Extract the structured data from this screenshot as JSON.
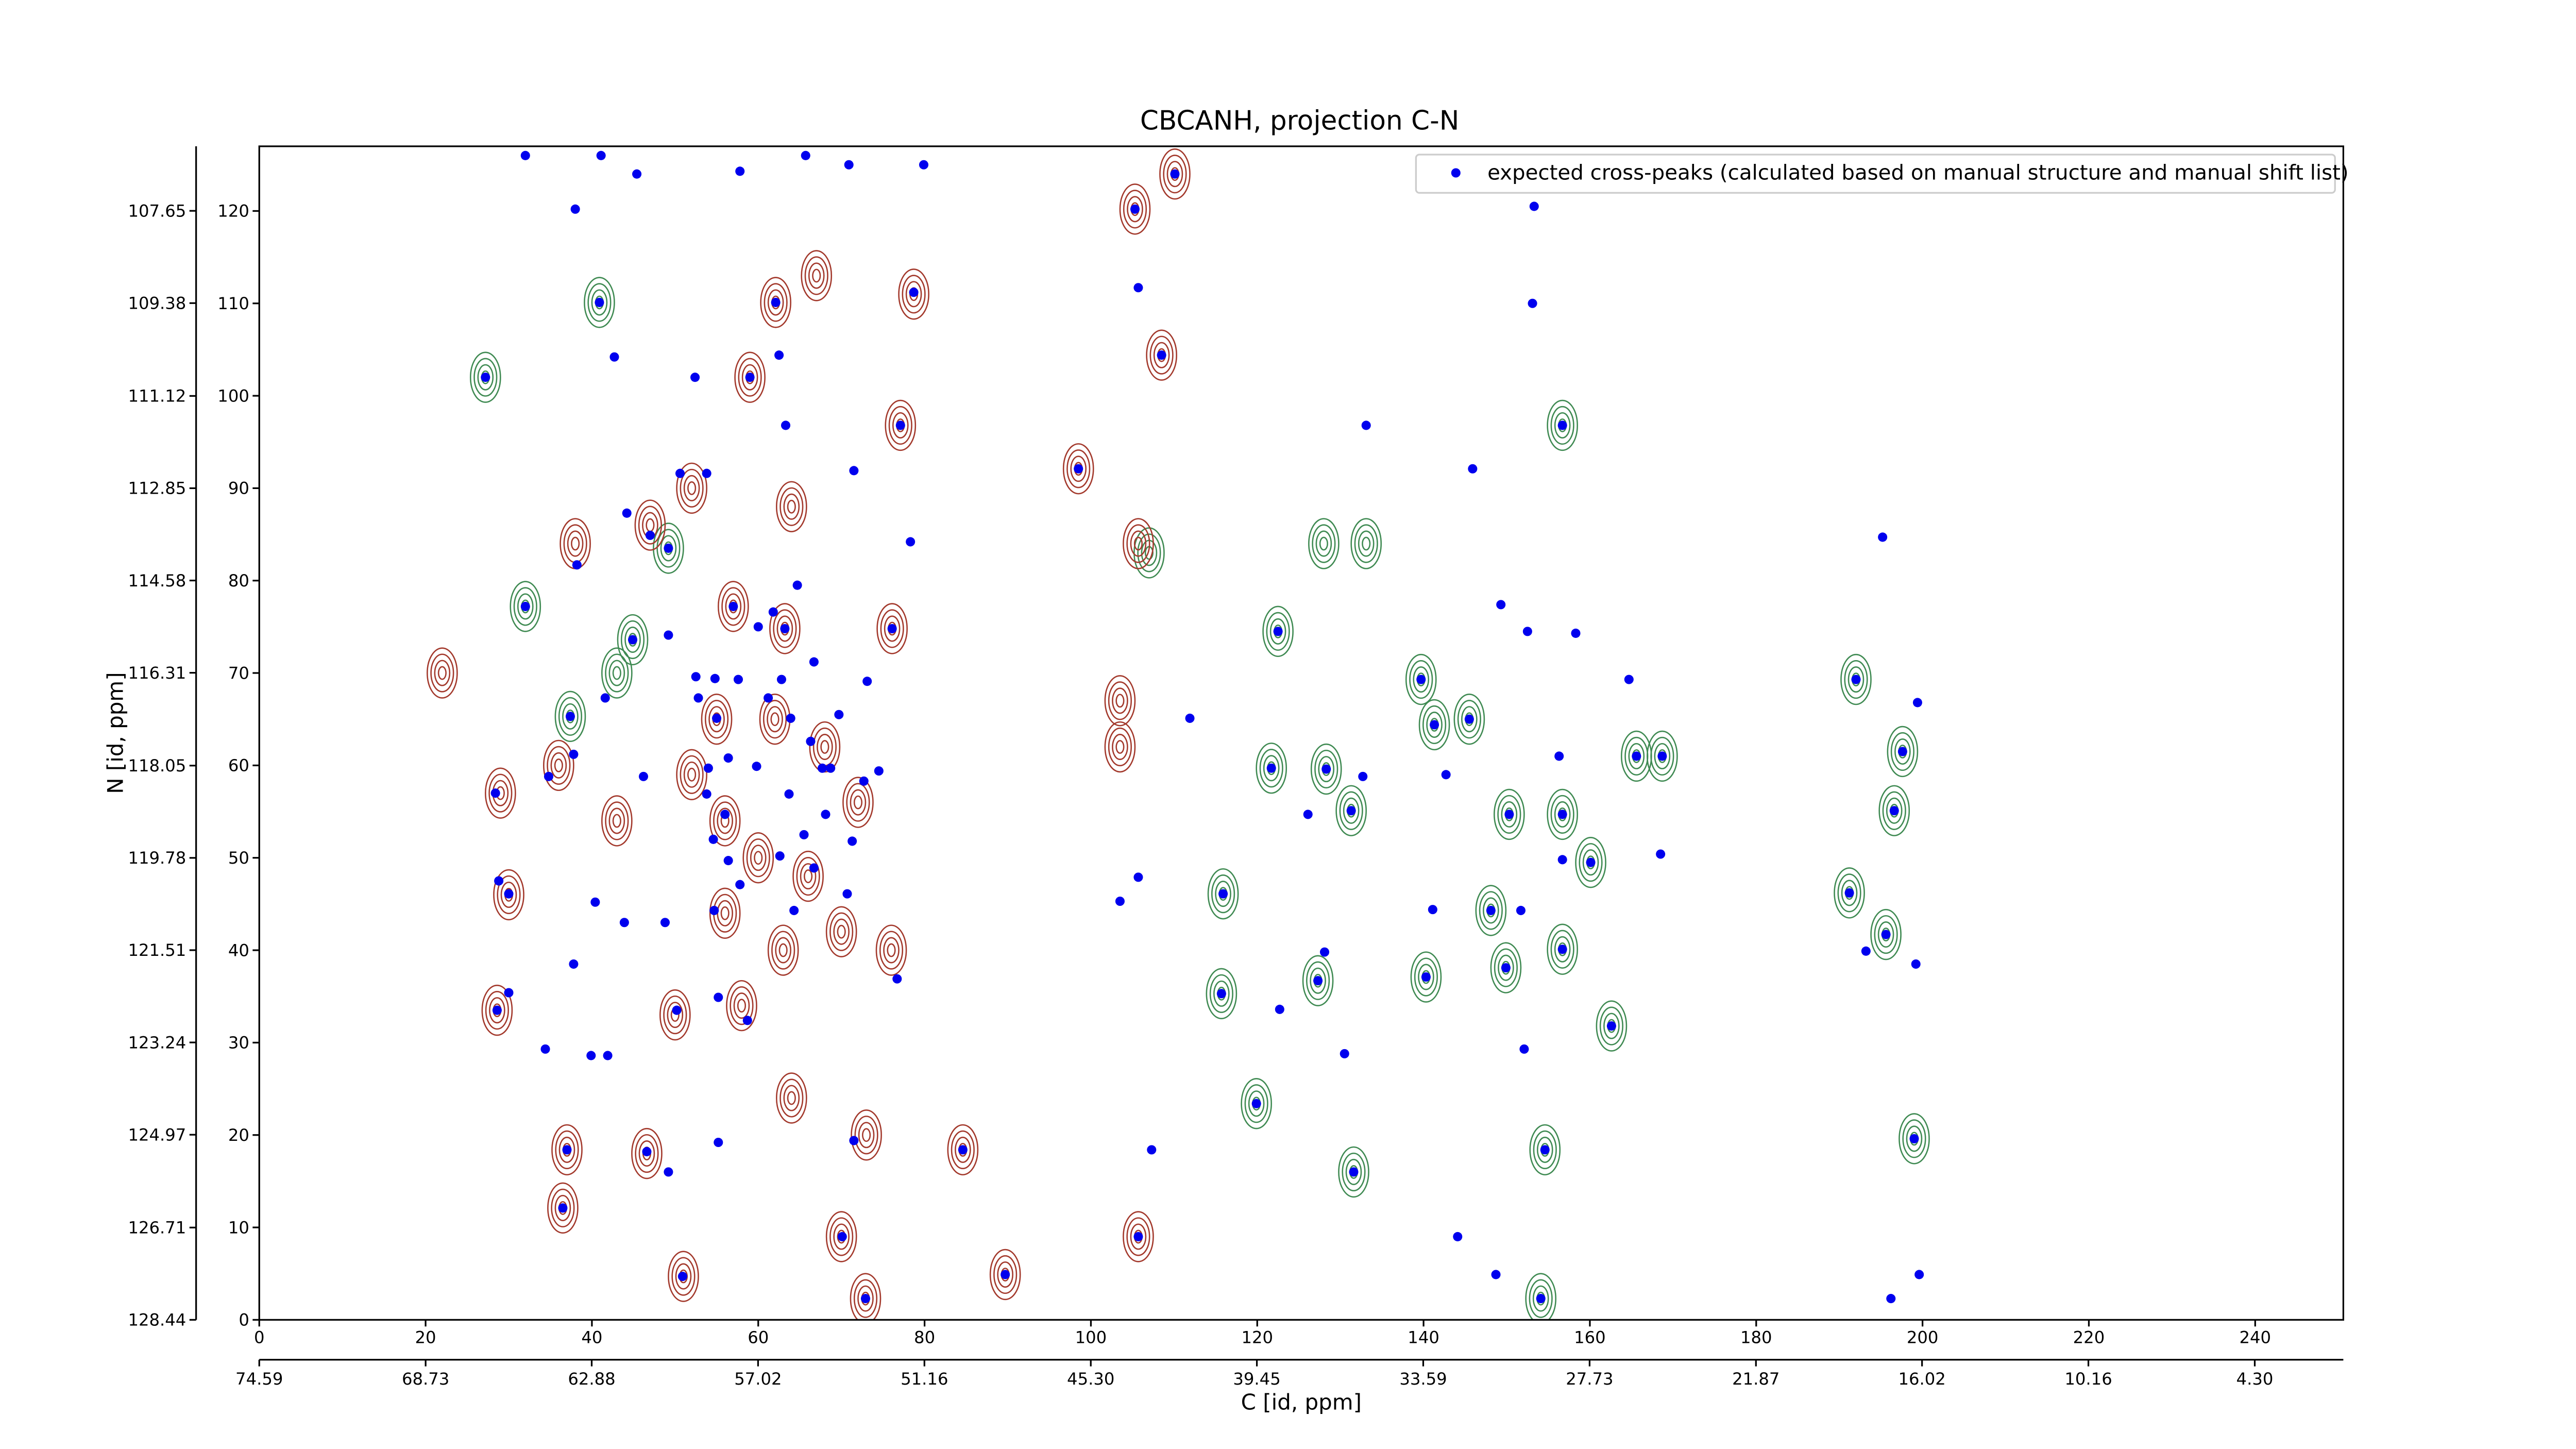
{
  "chart_data": {
    "type": "scatter",
    "title": "CBCANH, projection C-N",
    "x_label": "C [id, ppm]",
    "y_label": "N [id, ppm]",
    "legend": "upper right",
    "xlim": [
      0,
      250.6
    ],
    "ylim": [
      0,
      127
    ],
    "xticks": [
      0,
      20,
      40,
      60,
      80,
      100,
      120,
      140,
      160,
      180,
      200,
      220,
      240
    ],
    "yticks": [
      0,
      10,
      20,
      30,
      40,
      50,
      60,
      70,
      80,
      90,
      100,
      110,
      120
    ],
    "x2lim": [
      74.59,
      1.18
    ],
    "x2ticks": [
      74.59,
      68.73,
      62.88,
      57.02,
      51.16,
      {
        "value": 45.3,
        "label": "45.30"
      },
      39.45,
      33.59,
      27.73,
      21.87,
      16.02,
      10.16,
      {
        "value": 4.3,
        "label": "4.30"
      }
    ],
    "y2lim": [
      128.44,
      106.44
    ],
    "y2ticks": [
      107.65,
      109.38,
      111.12,
      112.85,
      114.58,
      116.31,
      118.05,
      119.78,
      121.51,
      123.24,
      124.97,
      126.71,
      128.44
    ],
    "series": [
      {
        "name": "expected cross-peaks (calculated based on manual structure and manual shift list)",
        "color": "#0000ee",
        "x": [
          32,
          41.1,
          45.4,
          57.8,
          65.7,
          70.9,
          79.9,
          110.1,
          105.3,
          38,
          153.3,
          105.7,
          40.9,
          62.1,
          78.7,
          153.1,
          108.5,
          42.7,
          27.2,
          52.4,
          59,
          62.5,
          63.3,
          77.1,
          133.1,
          156.7,
          98.5,
          145.9,
          53.8,
          50.6,
          71.5,
          44.2,
          47,
          49.2,
          38.2,
          78.3,
          195.2,
          32,
          57,
          60,
          63.2,
          76.1,
          49.2,
          44.9,
          149.3,
          152.5,
          158.3,
          122.5,
          192,
          199.4,
          139.7,
          164.7,
          52.5,
          57.6,
          62.8,
          37.4,
          41.6,
          111.9,
          141.3,
          145.5,
          197.6,
          165.6,
          168.7,
          156.3,
          121.7,
          128.3,
          132.7,
          142.7,
          37.8,
          46.2,
          34.8,
          28.4,
          59.8,
          68.7,
          74.5,
          196.6,
          126.1,
          150.3,
          156.7,
          131.3,
          168.5,
          156.7,
          160.1,
          191.2,
          103.5,
          105.7,
          115.9,
          141.1,
          148.1,
          151.7,
          28.8,
          30,
          40.4,
          43.9,
          48.8,
          54.7,
          64.3,
          70.7,
          193.2,
          195.6,
          128.1,
          140.3,
          149.9,
          156.7,
          115.7,
          122.7,
          127.3,
          30,
          37.8,
          50.2,
          55.2,
          58.7,
          76.7,
          199.2,
          28.6,
          34.4,
          39.9,
          41.9,
          130.5,
          152.1,
          162.6,
          119.9,
          84.6,
          107.3,
          199,
          55.2,
          71.5,
          37,
          46.6,
          49.2,
          131.6,
          154.6,
          36.5,
          105.7,
          144.1,
          70.1,
          50.9,
          89.7,
          148.7,
          199.6,
          72.9,
          154.1,
          196.2,
          54.8,
          52.8,
          55,
          56.4,
          54,
          53.8,
          56,
          54.6,
          56.4,
          57.8,
          61.2,
          63.9,
          66.3,
          67.7,
          63.7,
          68.1,
          65.5,
          62.6,
          66.7,
          71.3,
          72.7,
          69.7,
          66.7,
          61.8,
          64.7,
          73.1
        ],
        "y": [
          126,
          126,
          124,
          124.3,
          126,
          125,
          125,
          124,
          120.2,
          120.2,
          120.5,
          111.7,
          110.1,
          110.1,
          111.2,
          110,
          104.4,
          104.2,
          102,
          102,
          102,
          104.4,
          96.8,
          96.8,
          96.8,
          96.8,
          92.1,
          92.1,
          91.6,
          91.6,
          91.9,
          87.3,
          84.9,
          83.5,
          81.7,
          84.2,
          84.7,
          77.2,
          77.2,
          75,
          74.8,
          74.8,
          74.1,
          73.6,
          77.4,
          74.5,
          74.3,
          74.5,
          69.3,
          66.8,
          69.3,
          69.3,
          69.6,
          69.3,
          69.3,
          65.3,
          67.3,
          65.1,
          64.4,
          65,
          61.5,
          61,
          61,
          61,
          59.7,
          59.6,
          58.8,
          59,
          61.2,
          58.8,
          58.8,
          57,
          59.9,
          59.7,
          59.4,
          55.1,
          54.7,
          54.7,
          54.7,
          55.1,
          50.4,
          49.8,
          49.5,
          46.2,
          45.3,
          47.9,
          46.1,
          44.4,
          44.3,
          44.3,
          47.5,
          46.1,
          45.2,
          43,
          43,
          44.3,
          44.3,
          46.1,
          39.9,
          41.7,
          39.8,
          37.1,
          38.1,
          40.1,
          35.3,
          33.6,
          36.7,
          35.4,
          38.5,
          33.5,
          34.9,
          32.4,
          36.9,
          38.5,
          33.5,
          29.3,
          28.6,
          28.6,
          28.8,
          29.3,
          31.8,
          23.4,
          18.4,
          18.4,
          19.6,
          19.2,
          19.4,
          18.4,
          18.2,
          16,
          16,
          18.4,
          12.1,
          9,
          9,
          9,
          4.7,
          4.9,
          4.9,
          4.9,
          2.3,
          2.3,
          2.3,
          69.4,
          67.3,
          65.1,
          60.8,
          59.7,
          56.9,
          54.7,
          52,
          49.7,
          47.1,
          67.3,
          65.1,
          62.6,
          59.7,
          56.9,
          54.7,
          52.5,
          50.2,
          48.9,
          51.8,
          58.3,
          65.5,
          71.2,
          76.6,
          79.5,
          69.1
        ]
      }
    ],
    "contours": [
      {
        "color": "#3f8a52",
        "x": [
          122.5,
          128.3,
          131.3,
          139.7,
          141.3,
          145.5,
          148.1,
          140.3,
          149.9,
          156.7,
          150.3,
          156.7,
          160.1,
          165.6,
          168.7,
          156.7,
          133.1,
          128,
          121.7,
          115.7,
          119.9,
          115.9,
          127.3,
          131.6,
          154.6,
          192,
          197.6,
          196.6,
          191.2,
          195.6,
          199,
          40.9,
          27.2,
          32,
          44.9,
          43,
          37.4,
          49.2,
          162.6,
          154.1,
          107
        ],
        "y": [
          74.5,
          59.6,
          55.1,
          69.3,
          64.4,
          65,
          44.3,
          37.1,
          38.1,
          40.1,
          54.7,
          54.7,
          49.5,
          61,
          61,
          96.8,
          84,
          84,
          59.7,
          35.3,
          23.4,
          46.1,
          36.7,
          16,
          18.4,
          69.3,
          61.5,
          55.1,
          46.2,
          41.7,
          19.6,
          110.1,
          102,
          77.2,
          73.6,
          70,
          65.3,
          83.5,
          31.8,
          2.3,
          83
        ]
      },
      {
        "color": "#a3392c",
        "x": [
          110.1,
          105.3,
          108.5,
          98.5,
          105.7,
          103.5,
          103.5,
          62.1,
          59,
          77.1,
          38,
          47,
          57,
          63.2,
          76.1,
          55,
          62,
          68,
          72,
          56,
          60,
          66,
          56,
          63,
          70,
          76,
          58,
          50,
          30,
          28.6,
          36.5,
          37,
          46.6,
          73,
          64,
          70,
          105.7,
          89.7,
          51,
          72.9,
          22,
          29,
          36,
          43,
          52,
          64,
          67,
          78.7,
          84.6,
          52
        ],
        "y": [
          124,
          120.2,
          104.4,
          92.1,
          84,
          67,
          62,
          110.1,
          102,
          96.8,
          84,
          86,
          77.2,
          74.8,
          74.8,
          65,
          65,
          62,
          56,
          54,
          50,
          48,
          44,
          40,
          42,
          40,
          34,
          33,
          46,
          33.5,
          12.1,
          18.4,
          18,
          20,
          24,
          9,
          9,
          4.9,
          4.7,
          2.3,
          70,
          57,
          60,
          54,
          59,
          88,
          113,
          111,
          18.4,
          90
        ]
      }
    ]
  }
}
